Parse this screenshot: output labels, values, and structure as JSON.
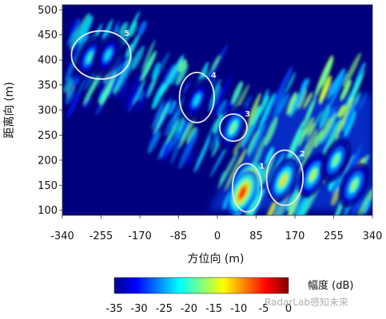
{
  "chart_data": {
    "type": "heatmap",
    "xlabel": "方位向 (m)",
    "ylabel": "距离向 (m)",
    "xlim": [
      -340,
      340
    ],
    "ylim": [
      90,
      510
    ],
    "x_ticks": [
      "-340",
      "-255",
      "-170",
      "-85",
      "0",
      "85",
      "170",
      "255",
      "340"
    ],
    "x_tick_values": [
      -340,
      -255,
      -170,
      -85,
      0,
      85,
      170,
      255,
      340
    ],
    "y_ticks": [
      "100",
      "150",
      "200",
      "250",
      "300",
      "350",
      "400",
      "450",
      "500"
    ],
    "y_tick_values": [
      100,
      150,
      200,
      250,
      300,
      350,
      400,
      450,
      500
    ],
    "colorbar": {
      "title": "幅度 (dB)",
      "ticks": [
        "-35",
        "-30",
        "-25",
        "-20",
        "-15",
        "-10",
        "-5",
        "0"
      ],
      "tick_values": [
        -35,
        -30,
        -25,
        -20,
        -15,
        -10,
        -5,
        0
      ],
      "range": [
        -35,
        0
      ]
    },
    "background_value_db": -35,
    "scatterers": [
      {
        "x": 65,
        "y": 150,
        "db": -1
      },
      {
        "x": 55,
        "y": 135,
        "db": -5
      },
      {
        "x": 145,
        "y": 160,
        "db": -12
      },
      {
        "x": 35,
        "y": 265,
        "db": -17
      },
      {
        "x": -45,
        "y": 320,
        "db": -22
      },
      {
        "x": -280,
        "y": 405,
        "db": -20
      },
      {
        "x": -240,
        "y": 410,
        "db": -22
      },
      {
        "x": 210,
        "y": 170,
        "db": -15
      },
      {
        "x": 260,
        "y": 200,
        "db": -17
      },
      {
        "x": 300,
        "y": 150,
        "db": -16
      }
    ],
    "annotations": [
      {
        "label": "1",
        "cx": 65,
        "cy": 145,
        "rx": 32,
        "ry": 48
      },
      {
        "label": "2",
        "cx": 148,
        "cy": 165,
        "rx": 40,
        "ry": 55
      },
      {
        "label": "3",
        "cx": 35,
        "cy": 265,
        "rx": 30,
        "ry": 27
      },
      {
        "label": "4",
        "cx": -45,
        "cy": 325,
        "rx": 38,
        "ry": 50
      },
      {
        "label": "5",
        "cx": -255,
        "cy": 410,
        "rx": 65,
        "ry": 48
      }
    ]
  },
  "colors": {
    "background": "#00007f",
    "annotation_stroke": "#e6e6e6",
    "colormap": "jet"
  },
  "watermark": "RadarLab感知未来"
}
